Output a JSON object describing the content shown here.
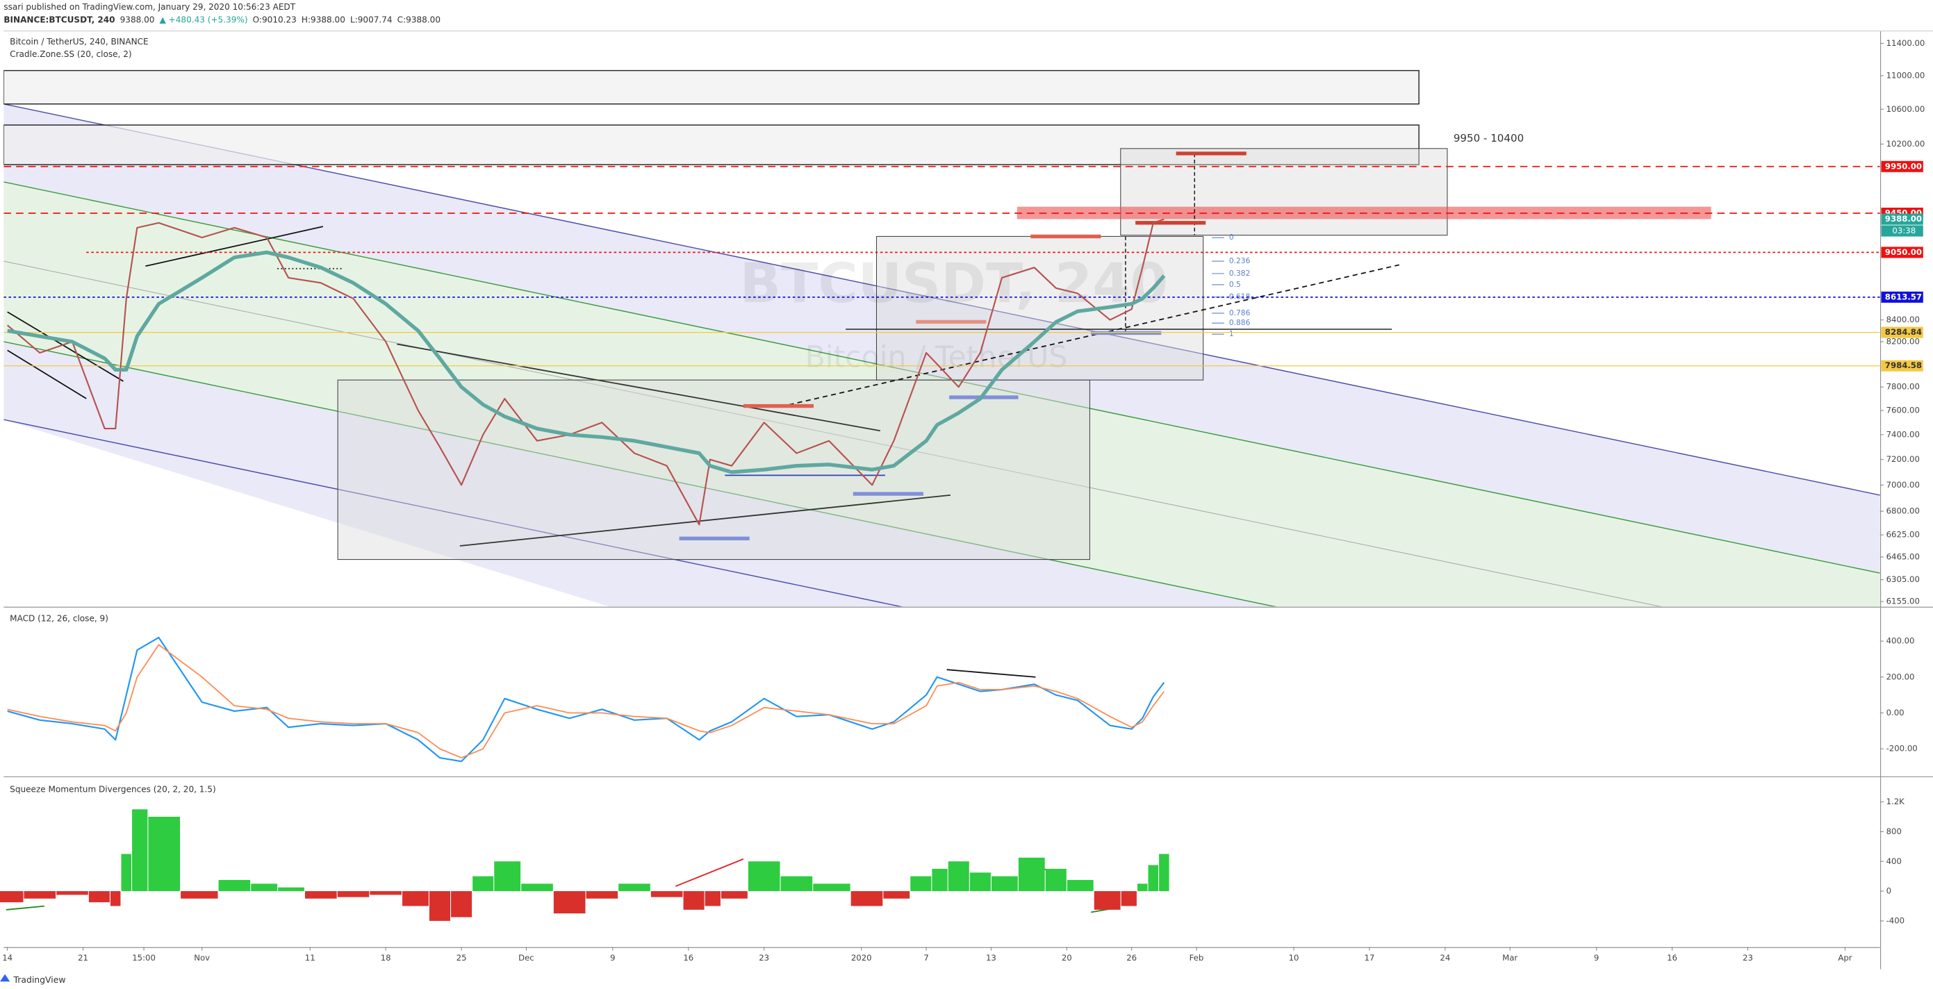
{
  "header": {
    "published": "ssari published on TradingView.com, January 29, 2020 10:56:23 AEDT",
    "symbol": "BINANCE:BTCUSDT, 240",
    "last": "9388.00",
    "change": "▲ +480.43 (+5.39%)",
    "open": "O:9010.23",
    "high": "H:9388.00",
    "low": "L:9007.74",
    "close": "C:9388.00"
  },
  "footer": "TradingView",
  "chart_data": [
    {
      "type": "line",
      "title": "Bitcoin / TetherUS, 240, BINANCE",
      "subtitle": "Cradle.Zone.SS (20, close, 2)",
      "watermark": [
        "BTCUSDT, 240",
        "Bitcoin / TetherUS"
      ],
      "annotations": [
        "9950 - 10400",
        "0",
        "0.236",
        "0.382",
        "0.5",
        "0.618",
        "0.786",
        "0.886",
        "1"
      ],
      "countdown": "03:38",
      "log_scale": true,
      "grid": false,
      "x": [
        "2019-10-14",
        "2019-10-17",
        "2019-10-20",
        "2019-10-23",
        "2019-10-24",
        "2019-10-25",
        "2019-10-26",
        "2019-10-28",
        "2019-11-01",
        "2019-11-04",
        "2019-11-07",
        "2019-11-09",
        "2019-11-12",
        "2019-11-15",
        "2019-11-18",
        "2019-11-21",
        "2019-11-23",
        "2019-11-25",
        "2019-11-27",
        "2019-11-29",
        "2019-12-02",
        "2019-12-05",
        "2019-12-08",
        "2019-12-11",
        "2019-12-14",
        "2019-12-17",
        "2019-12-18",
        "2019-12-20",
        "2019-12-23",
        "2019-12-26",
        "2019-12-29",
        "2020-01-02",
        "2020-01-04",
        "2020-01-07",
        "2020-01-08",
        "2020-01-10",
        "2020-01-12",
        "2020-01-14",
        "2020-01-17",
        "2020-01-19",
        "2020-01-21",
        "2020-01-24",
        "2020-01-26",
        "2020-01-27",
        "2020-01-28",
        "2020-01-29"
      ],
      "series": [
        {
          "color": "#b5524f",
          "width": 1.2,
          "values": [
            8350,
            8100,
            8200,
            7450,
            7450,
            8600,
            9300,
            9350,
            9200,
            9300,
            9200,
            8800,
            8750,
            8600,
            8200,
            7600,
            7300,
            7000,
            7400,
            7700,
            7350,
            7400,
            7500,
            7250,
            7150,
            6700,
            7200,
            7150,
            7500,
            7250,
            7350,
            7000,
            7350,
            8100,
            8000,
            7800,
            8100,
            8800,
            8900,
            8700,
            8650,
            8400,
            8500,
            8900,
            9350,
            9388
          ]
        },
        {
          "color": "#5fa8a0",
          "width": 3,
          "values": [
            8300,
            8250,
            8200,
            8050,
            7950,
            7950,
            8250,
            8550,
            8800,
            9000,
            9050,
            9000,
            8900,
            8750,
            8550,
            8300,
            8050,
            7800,
            7650,
            7550,
            7450,
            7400,
            7380,
            7350,
            7300,
            7250,
            7150,
            7100,
            7120,
            7150,
            7160,
            7120,
            7150,
            7350,
            7480,
            7580,
            7700,
            7950,
            8200,
            8380,
            8480,
            8520,
            8550,
            8600,
            8700,
            8820
          ]
        }
      ],
      "xlim": [
        "2019-10-14",
        "2020-04-04"
      ],
      "xticks": [
        {
          "value": "2019-10-14",
          "label": "14"
        },
        {
          "value": "2019-10-21",
          "label": "21"
        },
        {
          "value": "2019-10-26T15:00",
          "label": "15:00"
        },
        {
          "value": "2019-11-01",
          "label": "Nov"
        },
        {
          "value": "2019-11-11",
          "label": "11"
        },
        {
          "value": "2019-11-18",
          "label": "18"
        },
        {
          "value": "2019-11-25",
          "label": "25"
        },
        {
          "value": "2019-12-01",
          "label": "Dec"
        },
        {
          "value": "2019-12-09",
          "label": "9"
        },
        {
          "value": "2019-12-16",
          "label": "16"
        },
        {
          "value": "2019-12-23",
          "label": "23"
        },
        {
          "value": "2020-01-01",
          "label": "2020"
        },
        {
          "value": "2020-01-07",
          "label": "7"
        },
        {
          "value": "2020-01-13",
          "label": "13"
        },
        {
          "value": "2020-01-20",
          "label": "20"
        },
        {
          "value": "2020-01-26",
          "label": "26"
        },
        {
          "value": "2020-02-01",
          "label": "Feb"
        },
        {
          "value": "2020-02-10",
          "label": "10"
        },
        {
          "value": "2020-02-17",
          "label": "17"
        },
        {
          "value": "2020-02-24",
          "label": "24"
        },
        {
          "value": "2020-03-01",
          "label": "Mar"
        },
        {
          "value": "2020-03-09",
          "label": "9"
        },
        {
          "value": "2020-03-16",
          "label": "16"
        },
        {
          "value": "2020-03-23",
          "label": "23"
        },
        {
          "value": "2020-04-01",
          "label": "Apr"
        }
      ],
      "ylim": [
        6121,
        11557
      ],
      "yticks": [
        {
          "value": 11400,
          "label": "11400.00"
        },
        {
          "value": 11000,
          "label": "11000.00"
        },
        {
          "value": 10600,
          "label": "10600.00"
        },
        {
          "value": 10200,
          "label": "10200.00"
        },
        {
          "value": 8400,
          "label": "8400.00"
        },
        {
          "value": 8200,
          "label": "8200.00"
        },
        {
          "value": 7800,
          "label": "7800.00"
        },
        {
          "value": 7600,
          "label": "7600.00"
        },
        {
          "value": 7400,
          "label": "7400.00"
        },
        {
          "value": 7200,
          "label": "7200.00"
        },
        {
          "value": 7000,
          "label": "7000.00"
        },
        {
          "value": 6800,
          "label": "6800.00"
        },
        {
          "value": 6625,
          "label": "6625.00"
        },
        {
          "value": 6465,
          "label": "6465.00"
        },
        {
          "value": 6305,
          "label": "6305.00"
        },
        {
          "value": 6155,
          "label": "6155.00"
        }
      ],
      "levels": [
        {
          "value": 9950,
          "label": "9950.00",
          "color": "#f01010",
          "text_color": "#ffffff",
          "line": "dashed"
        },
        {
          "value": 9450,
          "label": "9450.00",
          "color": "#f01010",
          "text_color": "#ffffff",
          "line": "dashed"
        },
        {
          "value": 9388,
          "label": "9388.00",
          "color": "#26a69a",
          "text_color": "#ffffff",
          "line": "none"
        },
        {
          "value": 9050,
          "label": "9050.00",
          "color": "#f01010",
          "text_color": "#ffffff",
          "line": "dotted"
        },
        {
          "value": 8613.57,
          "label": "8613.57",
          "color": "#1010e0",
          "text_color": "#ffffff",
          "line": "dotted"
        },
        {
          "value": 8284.84,
          "label": "8284.84",
          "color": "#f5c842",
          "text_color": "#333333",
          "line": "solid"
        },
        {
          "value": 7984.58,
          "label": "7984.58",
          "color": "#f5c842",
          "text_color": "#333333",
          "line": "solid"
        }
      ]
    },
    {
      "type": "line",
      "title": "MACD (12, 26, close, 9)",
      "x": [
        "2019-10-14",
        "2019-10-17",
        "2019-10-20",
        "2019-10-23",
        "2019-10-24",
        "2019-10-25",
        "2019-10-26",
        "2019-10-28",
        "2019-11-01",
        "2019-11-04",
        "2019-11-07",
        "2019-11-09",
        "2019-11-12",
        "2019-11-15",
        "2019-11-18",
        "2019-11-21",
        "2019-11-23",
        "2019-11-25",
        "2019-11-27",
        "2019-11-29",
        "2019-12-02",
        "2019-12-05",
        "2019-12-08",
        "2019-12-11",
        "2019-12-14",
        "2019-12-17",
        "2019-12-18",
        "2019-12-20",
        "2019-12-23",
        "2019-12-26",
        "2019-12-29",
        "2020-01-02",
        "2020-01-04",
        "2020-01-07",
        "2020-01-08",
        "2020-01-10",
        "2020-01-12",
        "2020-01-14",
        "2020-01-17",
        "2020-01-19",
        "2020-01-21",
        "2020-01-24",
        "2020-01-26",
        "2020-01-27",
        "2020-01-28",
        "2020-01-29"
      ],
      "series": [
        {
          "color": "#2196f3",
          "width": 1.2,
          "values": [
            10,
            -40,
            -60,
            -90,
            -150,
            100,
            350,
            420,
            60,
            10,
            30,
            -80,
            -60,
            -70,
            -60,
            -150,
            -250,
            -270,
            -150,
            80,
            20,
            -30,
            20,
            -40,
            -30,
            -150,
            -100,
            -50,
            80,
            -20,
            -10,
            -90,
            -50,
            100,
            200,
            160,
            120,
            130,
            160,
            100,
            70,
            -70,
            -90,
            -30,
            90,
            170
          ]
        },
        {
          "color": "#ff8a50",
          "width": 1,
          "values": [
            20,
            -20,
            -50,
            -70,
            -100,
            0,
            200,
            380,
            200,
            40,
            20,
            -30,
            -50,
            -60,
            -60,
            -110,
            -200,
            -250,
            -200,
            0,
            40,
            0,
            0,
            -20,
            -30,
            -100,
            -110,
            -70,
            30,
            10,
            -10,
            -60,
            -60,
            40,
            150,
            170,
            130,
            130,
            150,
            120,
            80,
            -20,
            -80,
            -50,
            40,
            120
          ]
        }
      ],
      "xlim": [
        "2019-10-14",
        "2020-04-04"
      ],
      "ylim": [
        -352,
        586
      ],
      "yticks": [
        {
          "value": 400,
          "label": "400.00"
        },
        {
          "value": 200,
          "label": "200.00"
        },
        {
          "value": 0,
          "label": "0.00"
        },
        {
          "value": -200,
          "label": "-200.00"
        }
      ]
    },
    {
      "type": "bar",
      "title": "Squeeze Momentum Divergences (20, 2, 20, 1.5)",
      "x": [
        "2019-10-14",
        "2019-10-17",
        "2019-10-20",
        "2019-10-23",
        "2019-10-24",
        "2019-10-25",
        "2019-10-26",
        "2019-10-28",
        "2019-11-01",
        "2019-11-04",
        "2019-11-07",
        "2019-11-09",
        "2019-11-12",
        "2019-11-15",
        "2019-11-18",
        "2019-11-21",
        "2019-11-23",
        "2019-11-25",
        "2019-11-27",
        "2019-11-29",
        "2019-12-02",
        "2019-12-05",
        "2019-12-08",
        "2019-12-11",
        "2019-12-14",
        "2019-12-17",
        "2019-12-18",
        "2019-12-20",
        "2019-12-23",
        "2019-12-26",
        "2019-12-29",
        "2020-01-02",
        "2020-01-04",
        "2020-01-07",
        "2020-01-08",
        "2020-01-10",
        "2020-01-12",
        "2020-01-14",
        "2020-01-17",
        "2020-01-19",
        "2020-01-21",
        "2020-01-24",
        "2020-01-26",
        "2020-01-27",
        "2020-01-28",
        "2020-01-29"
      ],
      "values": [
        -150,
        -100,
        -50,
        -150,
        -200,
        500,
        1100,
        1000,
        -100,
        150,
        100,
        50,
        -100,
        -80,
        -50,
        -200,
        -400,
        -350,
        200,
        400,
        100,
        -300,
        -100,
        100,
        -80,
        -250,
        -200,
        -100,
        400,
        200,
        100,
        -200,
        -100,
        200,
        300,
        400,
        250,
        200,
        450,
        300,
        150,
        -250,
        -200,
        100,
        350,
        500
      ],
      "positive_color": "#2ecc40",
      "negative_color": "#d9302c",
      "xlim": [
        "2019-10-14",
        "2020-04-04"
      ],
      "ylim": [
        -750,
        1530
      ],
      "yticks": [
        {
          "value": 1200,
          "label": "1.2K"
        },
        800,
        400,
        0,
        -400
      ]
    }
  ]
}
